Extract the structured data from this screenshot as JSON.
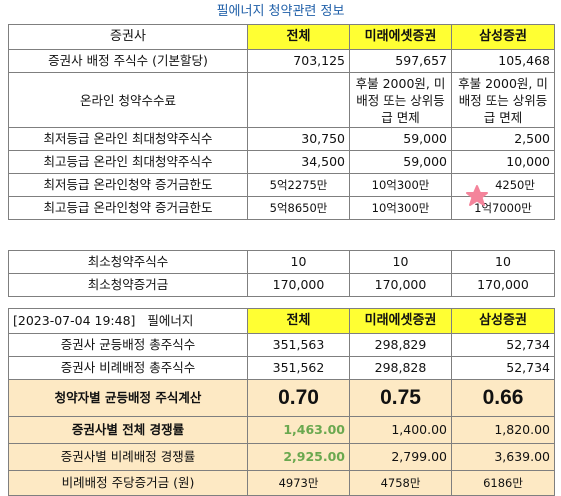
{
  "page_title": "필에너지 청약관련 정보",
  "table1": {
    "header": [
      "증권사",
      "전체",
      "미래에셋증권",
      "삼성증권"
    ],
    "rows": [
      {
        "label": "증권사 배정 주식수 (기본할당)",
        "v": [
          "703,125",
          "597,657",
          "105,468"
        ]
      },
      {
        "label": "온라인 청약수수료",
        "v": [
          "",
          "후불 2000원, 미배정 또는 상위등급 면제",
          "후불 2000원, 미배정 또는 상위등급 면제"
        ]
      },
      {
        "label": "최저등급 온라인 최대청약주식수",
        "v": [
          "30,750",
          "59,000",
          "2,500"
        ]
      },
      {
        "label": "최고등급 온라인 최대청약주식수",
        "v": [
          "34,500",
          "59,000",
          "10,000"
        ]
      },
      {
        "label": "최저등급 온라인청약 증거금한도",
        "v": [
          "5억2275만",
          "10억300만",
          "4250만"
        ]
      },
      {
        "label": "최고등급 온라인청약 증거금한도",
        "v": [
          "5억8650만",
          "10억300만",
          "1억7000만"
        ]
      }
    ]
  },
  "table2": {
    "rows": [
      {
        "label": "최소청약주식수",
        "v": [
          "10",
          "10",
          "10"
        ]
      },
      {
        "label": "최소청약증거금",
        "v": [
          "170,000",
          "170,000",
          "170,000"
        ]
      }
    ]
  },
  "table3": {
    "timestamp": "[2023-07-04 19:48]",
    "company": "필에너지",
    "header": [
      "전체",
      "미래에셋증권",
      "삼성증권"
    ],
    "rows": [
      {
        "label": "증권사 균등배정 총주식수",
        "v": [
          "351,563",
          "298,829",
          "52,734"
        ]
      },
      {
        "label": "증권사 비례배정 총주식수",
        "v": [
          "351,562",
          "298,828",
          "52,734"
        ]
      },
      {
        "label": "청약자별 균등배정 주식계산",
        "v": [
          "0.70",
          "0.75",
          "0.66"
        ]
      },
      {
        "label": "증권사별 전체 경쟁률",
        "v": [
          "1,463.00",
          "1,400.00",
          "1,820.00"
        ]
      },
      {
        "label": "증권사별 비례배정 경쟁률",
        "v": [
          "2,925.00",
          "2,799.00",
          "3,639.00"
        ]
      },
      {
        "label": "비례배정 주당증거금 (원)",
        "v": [
          "4973만",
          "4758만",
          "6186만"
        ]
      }
    ]
  },
  "colors": {
    "header_yellow": "#ffff33",
    "cream": "#fde9c4",
    "green": "#6aa84f",
    "title_blue": "#1f5fa8",
    "star_pink": "#f4849b"
  }
}
